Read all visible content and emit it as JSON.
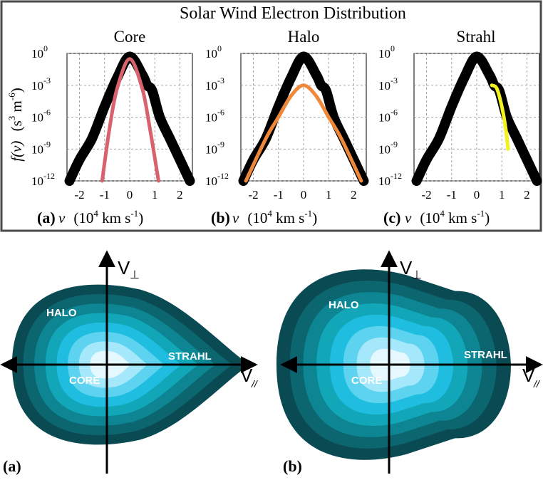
{
  "top_figure": {
    "title": "Solar Wind Electron Distribution",
    "ylabel": "f(v)",
    "yunit": "(s",
    "yunit_exp3": "3",
    "yunit_mid": " m",
    "yunit_expm6": "-6",
    "yunit_close": ")",
    "xvar": "v",
    "xunit_open": "(10",
    "xunit_exp": "4",
    "xunit_rest": " km s",
    "xunit_expm1": "-1",
    "xunit_close": ")",
    "y_ticks": [
      {
        "base": "10",
        "exp": "0"
      },
      {
        "base": "10",
        "exp": "-3"
      },
      {
        "base": "10",
        "exp": "-6"
      },
      {
        "base": "10",
        "exp": "-9"
      },
      {
        "base": "10",
        "exp": "-12"
      }
    ],
    "x_ticks": [
      "-2",
      "-1",
      "0",
      "1",
      "2"
    ],
    "panels": [
      {
        "title": "Core",
        "letter": "(a)",
        "component": "core",
        "component_color": "#d8636d"
      },
      {
        "title": "Halo",
        "letter": "(b)",
        "component": "halo",
        "component_color": "#f0883a"
      },
      {
        "title": "Strahl",
        "letter": "(c)",
        "component": "strahl",
        "component_color": "#f2f21e"
      }
    ]
  },
  "chart_data": [
    {
      "type": "line",
      "title": "Core",
      "x_range": [
        -2.5,
        2.5
      ],
      "y_scale": "log",
      "y_range": [
        1e-12,
        1
      ],
      "series": [
        {
          "name": "",
          "color": "#000000",
          "x": [
            -2.4,
            -2,
            -1.5,
            -1,
            -0.5,
            0,
            0.5,
            0.7,
            0.9,
            1.2,
            1.6,
            2,
            2.4
          ],
          "y": [
            1e-12,
            1e-10,
            1e-08,
            1e-05,
            0.005,
            0.5,
            0.01,
            0.001,
            0.0003,
            1e-06,
            1e-08,
            1e-10,
            1e-12
          ]
        },
        {
          "name": "",
          "color": "#d8636d",
          "x": [
            -1.1,
            -0.8,
            -0.5,
            0,
            0.5,
            0.8,
            1.15
          ],
          "y": [
            1e-12,
            1e-07,
            0.0005,
            0.3,
            0.0005,
            1e-07,
            1e-12
          ]
        }
      ]
    },
    {
      "type": "line",
      "title": "Halo",
      "x_range": [
        -2.5,
        2.5
      ],
      "y_scale": "log",
      "y_range": [
        1e-12,
        1
      ],
      "series": [
        {
          "name": "",
          "color": "#000000",
          "x": [
            -2.4,
            -2,
            -1.5,
            -1,
            -0.5,
            0,
            0.5,
            0.7,
            0.9,
            1.2,
            1.6,
            2,
            2.4
          ],
          "y": [
            1e-12,
            1e-10,
            1e-08,
            1e-05,
            0.005,
            0.5,
            0.01,
            0.001,
            0.0003,
            1e-06,
            1e-08,
            1e-10,
            1e-12
          ]
        },
        {
          "name": "",
          "color": "#f0883a",
          "x": [
            -2.3,
            -1.5,
            -1,
            -0.5,
            0,
            0.5,
            1,
            1.5,
            2.3
          ],
          "y": [
            1e-12,
            1e-08,
            1e-06,
            0.0001,
            0.001,
            0.0001,
            1e-06,
            1e-08,
            1e-12
          ]
        }
      ]
    },
    {
      "type": "line",
      "title": "Strahl",
      "x_range": [
        -2.5,
        2.5
      ],
      "y_scale": "log",
      "y_range": [
        1e-12,
        1
      ],
      "series": [
        {
          "name": "",
          "color": "#000000",
          "x": [
            -2.4,
            -2,
            -1.5,
            -1,
            -0.5,
            0,
            0.5,
            0.7,
            0.9,
            1.2,
            1.6,
            2,
            2.4
          ],
          "y": [
            1e-12,
            1e-10,
            1e-08,
            1e-05,
            0.005,
            0.5,
            0.01,
            0.001,
            0.0003,
            1e-06,
            1e-08,
            1e-10,
            1e-12
          ]
        },
        {
          "name": "",
          "color": "#f2f21e",
          "x": [
            0.6,
            0.8,
            1,
            1.15,
            1.25
          ],
          "y": [
            0.001,
            0.0005,
            1e-05,
            1e-07,
            1e-09
          ]
        }
      ]
    }
  ],
  "bottom_figure": {
    "panels": [
      {
        "letter": "(a)",
        "halo": "HALO",
        "strahl": "STRAHL",
        "core": "CORE",
        "v_perp": "V",
        "v_perp_sub": "⊥",
        "v_par": "V",
        "v_par_sub": "//"
      },
      {
        "letter": "(b)",
        "halo": "HALO",
        "strahl": "STRAHL",
        "core": "CORE",
        "v_perp": "V",
        "v_perp_sub": "⊥",
        "v_par": "V",
        "v_par_sub": "//"
      }
    ],
    "contour_colors": [
      "#0a4a52",
      "#0b6670",
      "#0d8592",
      "#11a6b8",
      "#1fbde0",
      "#5dd3f0",
      "#a6e8fb",
      "#e6f8ff"
    ]
  }
}
